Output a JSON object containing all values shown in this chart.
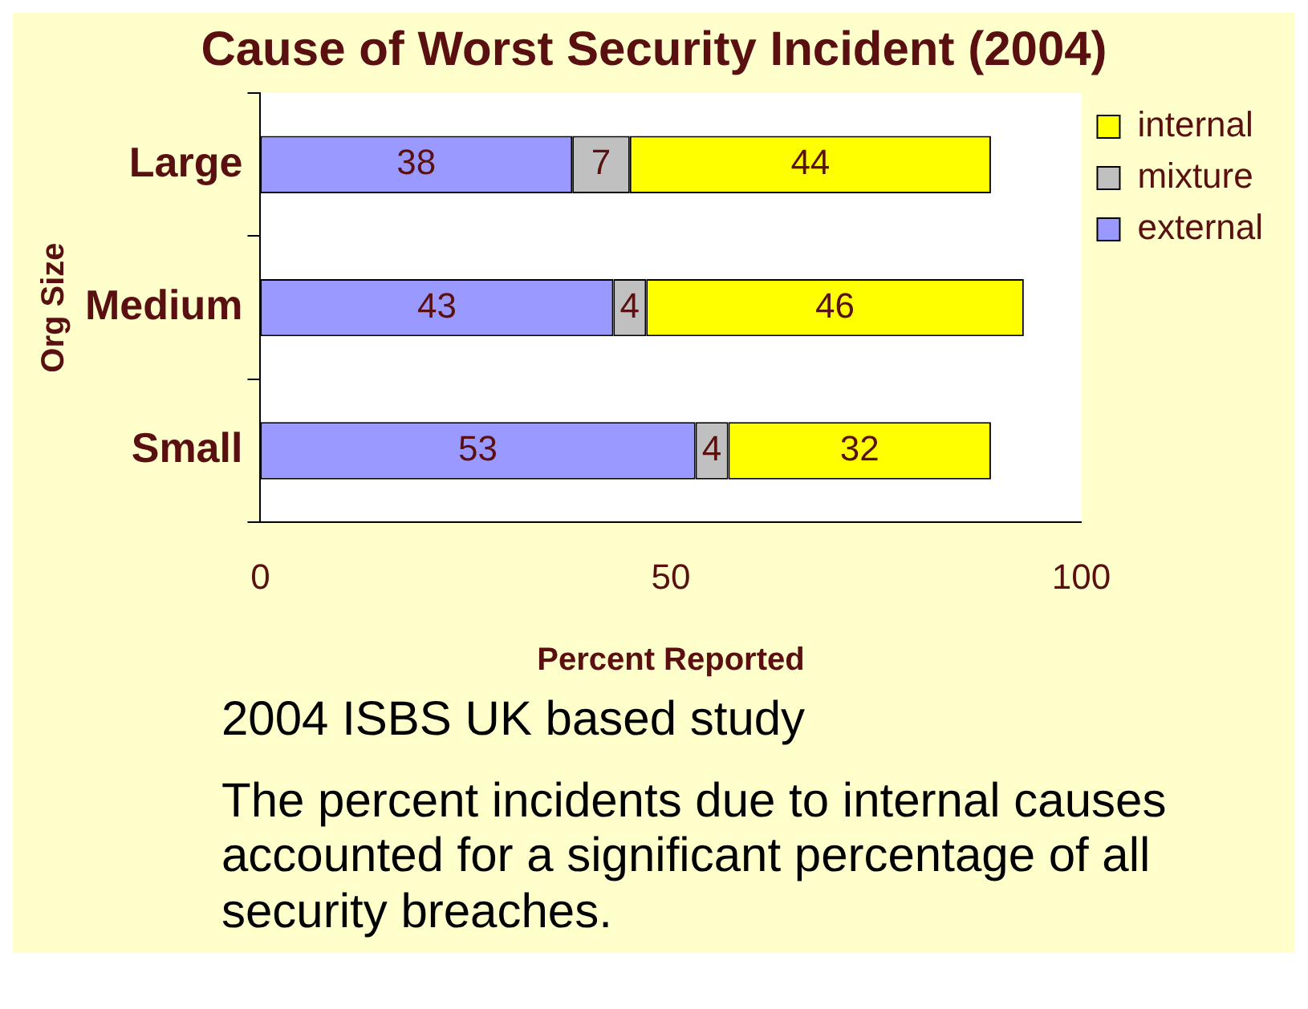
{
  "chart_data": {
    "type": "bar",
    "orientation": "horizontal",
    "stacked": true,
    "title": "Cause of Worst Security Incident (2004)",
    "xlabel": "Percent Reported",
    "ylabel": "Org Size",
    "categories": [
      "Large",
      "Medium",
      "Small"
    ],
    "series": [
      {
        "name": "external",
        "color": "#9999ff",
        "values": [
          38,
          43,
          53
        ]
      },
      {
        "name": "mixture",
        "color": "#c0c0c0",
        "values": [
          7,
          4,
          4
        ]
      },
      {
        "name": "internal",
        "color": "#ffff00",
        "values": [
          44,
          46,
          32
        ]
      }
    ],
    "xlim": [
      0,
      100
    ],
    "xticks": [
      0,
      50,
      100
    ],
    "grid": false,
    "legend": "top right",
    "data_labels": true,
    "annotations": [
      "2004 ISBS UK based study",
      "The percent incidents due to internal causes accounted for a significant percentage of all security breaches."
    ]
  }
}
